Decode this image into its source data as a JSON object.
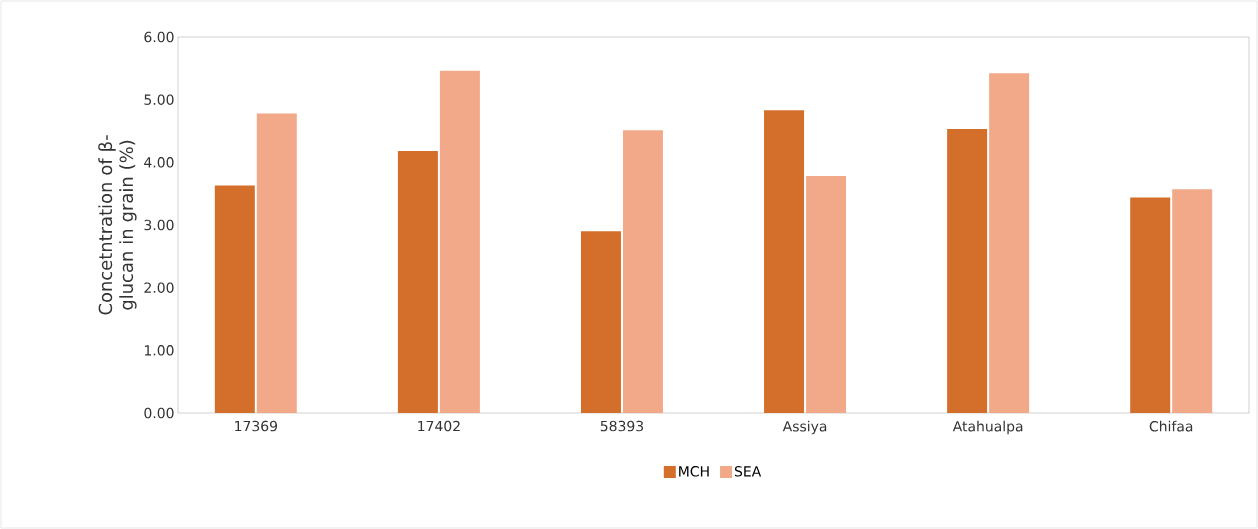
{
  "chart_data": {
    "type": "bar",
    "ylabel": "Concetntration of β-glucan in grain (%)",
    "categories": [
      "17369",
      "17402",
      "58393",
      "Assiya",
      "Atahualpa",
      "Chifaa"
    ],
    "series": [
      {
        "name": "MCH",
        "color": "#d46f2b",
        "values": [
          3.63,
          4.18,
          2.9,
          4.83,
          4.53,
          3.44
        ]
      },
      {
        "name": "SEA",
        "color": "#f2a98a",
        "values": [
          4.78,
          5.46,
          4.51,
          3.78,
          5.42,
          3.57
        ]
      }
    ],
    "ylim": [
      0,
      6
    ],
    "yticks": [
      {
        "value": 0,
        "label": "0.00"
      },
      {
        "value": 1,
        "label": "1.00"
      },
      {
        "value": 2,
        "label": "2.00"
      },
      {
        "value": 3,
        "label": "3.00"
      },
      {
        "value": 4,
        "label": "4.00"
      },
      {
        "value": 5,
        "label": "5.00"
      },
      {
        "value": 6,
        "label": "6.00"
      }
    ],
    "grid": false,
    "legend": "bottom"
  }
}
